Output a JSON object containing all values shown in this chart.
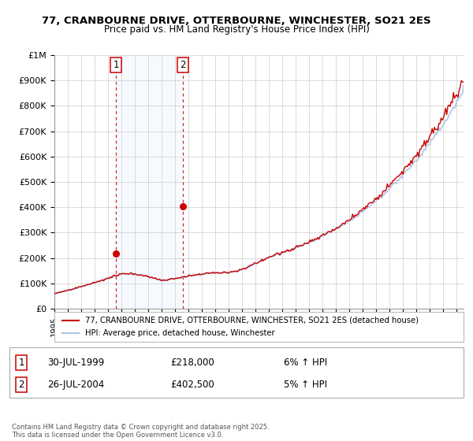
{
  "title": "77, CRANBOURNE DRIVE, OTTERBOURNE, WINCHESTER, SO21 2ES",
  "subtitle": "Price paid vs. HM Land Registry's House Price Index (HPI)",
  "ylim": [
    0,
    1000000
  ],
  "yticks": [
    0,
    100000,
    200000,
    300000,
    400000,
    500000,
    600000,
    700000,
    800000,
    900000,
    1000000
  ],
  "ytick_labels": [
    "£0",
    "£100K",
    "£200K",
    "£300K",
    "£400K",
    "£500K",
    "£600K",
    "£700K",
    "£800K",
    "£900K",
    "£1M"
  ],
  "xlim_start": 1995.0,
  "xlim_end": 2025.5,
  "hpi_color": "#aec6e8",
  "sale_color": "#cc0000",
  "vline_color": "#cc0000",
  "shade_color": "#ddeeff",
  "marker1_x": 1999.58,
  "marker1_y": 218000,
  "marker2_x": 2004.58,
  "marker2_y": 402500,
  "vline1_x": 1999.58,
  "vline2_x": 2004.58,
  "legend_sale_label": "77, CRANBOURNE DRIVE, OTTERBOURNE, WINCHESTER, SO21 2ES (detached house)",
  "legend_hpi_label": "HPI: Average price, detached house, Winchester",
  "annotation1_date": "30-JUL-1999",
  "annotation1_price": "£218,000",
  "annotation1_hpi": "6% ↑ HPI",
  "annotation2_date": "26-JUL-2004",
  "annotation2_price": "£402,500",
  "annotation2_hpi": "5% ↑ HPI",
  "footnote": "Contains HM Land Registry data © Crown copyright and database right 2025.\nThis data is licensed under the Open Government Licence v3.0.",
  "background_color": "#ffffff",
  "grid_color": "#cccccc"
}
